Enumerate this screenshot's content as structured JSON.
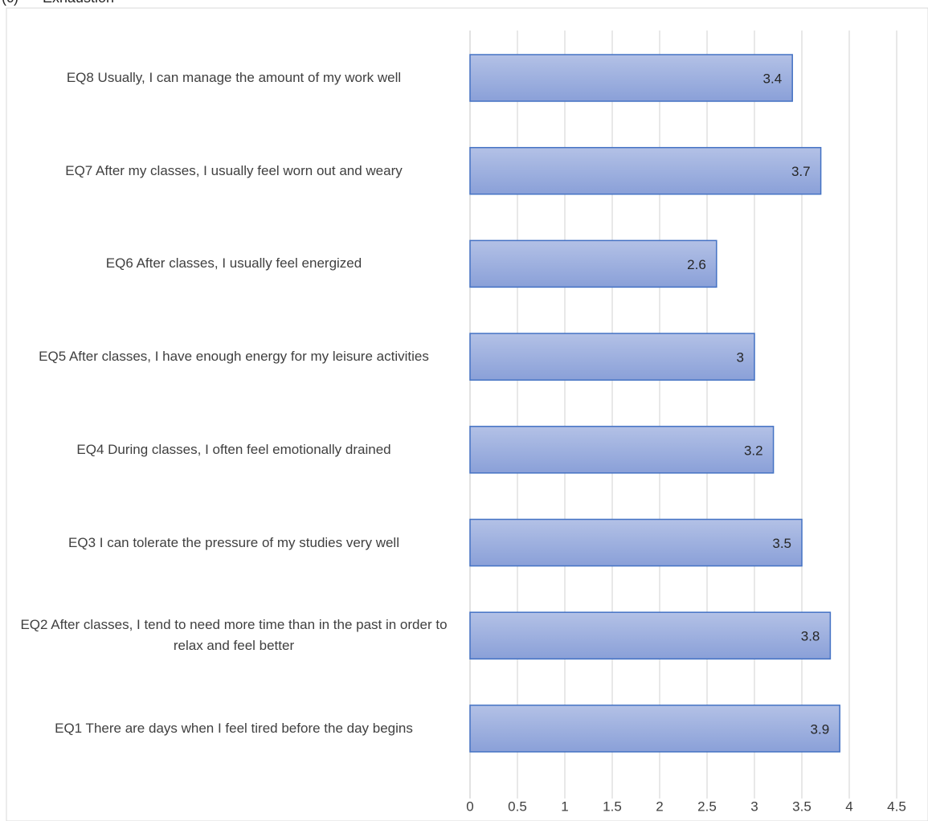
{
  "heading": "(c)      Exhaustion",
  "chart_data": {
    "type": "bar",
    "orientation": "horizontal",
    "title": "",
    "xlabel": "",
    "ylabel": "",
    "categories": [
      "EQ8  Usually, I can manage the amount of my work well",
      "EQ7  After my classes, I usually feel worn out and weary",
      "EQ6  After classes, I usually feel energized",
      "EQ5  After classes, I have enough energy for my leisure activities",
      "EQ4  During classes, I often feel emotionally drained",
      "EQ3  I can tolerate the pressure of my studies very well",
      "EQ2  After classes, I tend to need more time than in the past in order to  relax and feel better",
      "EQ1  There are days when I feel tired before the day begins"
    ],
    "values": [
      3.4,
      3.7,
      2.6,
      3,
      3.2,
      3.5,
      3.8,
      3.9
    ],
    "value_labels": [
      "3.4",
      "3.7",
      "2.6",
      "3",
      "3.2",
      "3.5",
      "3.8",
      "3.9"
    ],
    "xlim": [
      0,
      4.5
    ],
    "ticks": [
      "0",
      "0.5",
      "1",
      "1.5",
      "2",
      "2.5",
      "3",
      "3.5",
      "4",
      "4.5"
    ],
    "grid": true,
    "legend": "none",
    "bar_color_top": "#b3c1e6",
    "bar_color_bottom": "#8aa0d8",
    "bar_border": "#4472c4",
    "gridline_color": "#d9d9d9"
  }
}
